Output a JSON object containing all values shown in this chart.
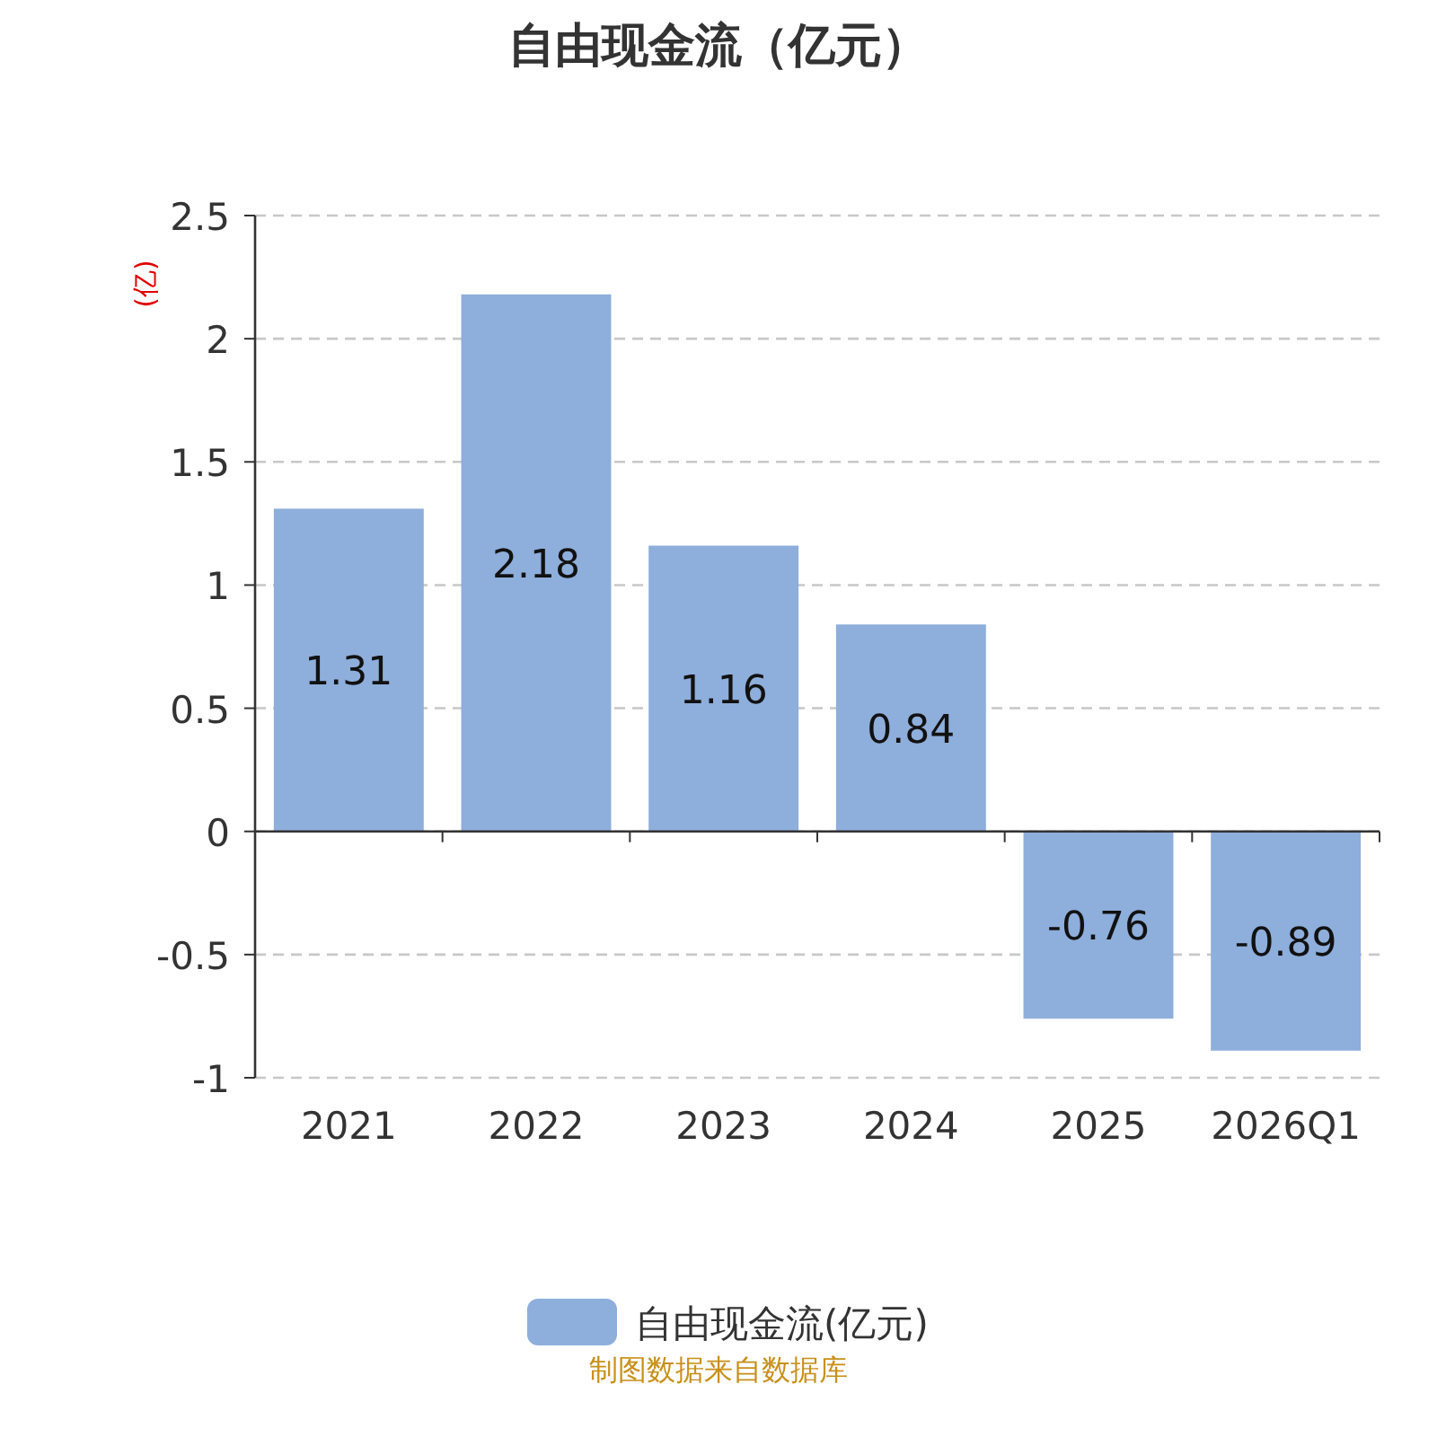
{
  "chart_data": {
    "type": "bar",
    "title": "自由现金流（亿元）",
    "ylabel": "(亿)",
    "categories": [
      "2021",
      "2022",
      "2023",
      "2024",
      "2025",
      "2026Q1"
    ],
    "series": [
      {
        "name": "自由现金流(亿元)",
        "color": "#8eaedb",
        "values": [
          1.31,
          2.18,
          1.16,
          0.84,
          -0.76,
          -0.89
        ]
      }
    ],
    "ylim": [
      -1,
      2.5
    ],
    "yticks": [
      -1,
      -0.5,
      0,
      0.5,
      1,
      1.5,
      2,
      2.5
    ],
    "grid": "y",
    "legend": "bottom",
    "data_labels": true,
    "annotations": [
      "制图数据来自数据库"
    ]
  }
}
